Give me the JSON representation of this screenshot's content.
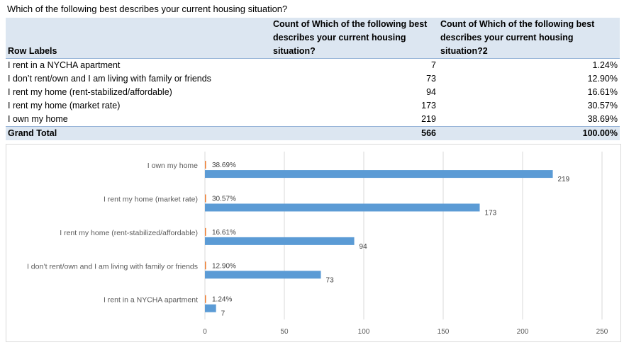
{
  "question": "Which of the following best describes your current housing situation?",
  "table": {
    "headers": [
      "Row Labels",
      "Count of Which of the following best describes your current housing situation?",
      "Count of Which of the following best describes your current housing situation?2"
    ],
    "rows": [
      {
        "label": "I rent in a NYCHA apartment",
        "count": "7",
        "pct": "1.24%"
      },
      {
        "label": "I don’t rent/own and I am living with family or friends",
        "count": "73",
        "pct": "12.90%"
      },
      {
        "label": "I rent my home (rent-stabilized/affordable)",
        "count": "94",
        "pct": "16.61%"
      },
      {
        "label": "I rent my home (market rate)",
        "count": "173",
        "pct": "30.57%"
      },
      {
        "label": "I own my home",
        "count": "219",
        "pct": "38.69%"
      }
    ],
    "total": {
      "label": "Grand Total",
      "count": "566",
      "pct": "100.00%"
    }
  },
  "chart_data": {
    "type": "bar",
    "orientation": "horizontal",
    "categories": [
      "I own my home",
      "I rent my home (market rate)",
      "I rent my home (rent-stabilized/affordable)",
      "I don’t rent/own and I am living with family or friends",
      "I rent in a NYCHA apartment"
    ],
    "series": [
      {
        "values": [
          219,
          173,
          94,
          73,
          7
        ]
      },
      {
        "values": [
          38.69,
          30.57,
          16.61,
          12.9,
          1.24
        ],
        "labels": [
          "38.69%",
          "30.57%",
          "16.61%",
          "12.90%",
          "1.24%"
        ]
      }
    ],
    "xlim": [
      0,
      250
    ],
    "xticks": [
      0,
      50,
      100,
      150,
      200,
      250
    ],
    "grid": "vertical",
    "legend": "none",
    "bar_color": "#5b9bd5",
    "pct_marker_color": "#ed7d31"
  }
}
